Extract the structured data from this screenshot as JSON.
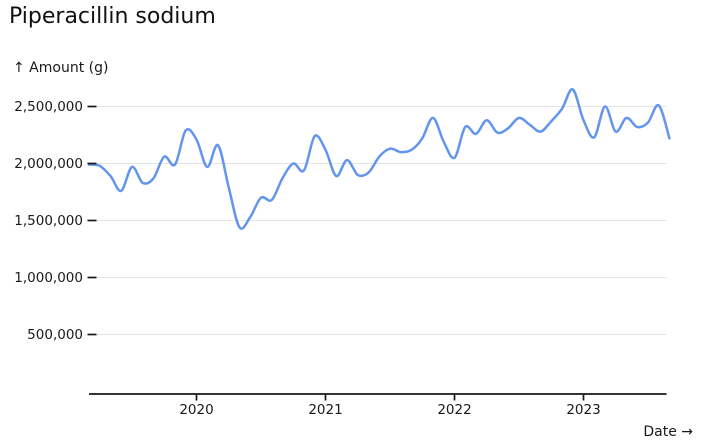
{
  "page": {
    "background": "#ffffff"
  },
  "title": "Piperacillin sodium",
  "chart_data": {
    "type": "line",
    "title": "Piperacillin sodium",
    "ylabel": "↑ Amount (g)",
    "xlabel": "Date →",
    "legend": "none",
    "grid": "horizontal",
    "line_color": "#6495ed",
    "grid_color": "#e4e4e4",
    "axis_color": "#161616",
    "text_color": "#1a1a1a",
    "ylim": [
      0,
      2500000
    ],
    "xlim_years": [
      2019.1667,
      2023.6667
    ],
    "y_ticks": [
      500000,
      1000000,
      1500000,
      2000000,
      2500000
    ],
    "y_tick_labels": [
      "500,000",
      "1,000,000",
      "1,500,000",
      "2,000,000",
      "2,500,000"
    ],
    "x_ticks": [
      2020,
      2021,
      2022,
      2023
    ],
    "series": [
      {
        "name": "Piperacillin sodium",
        "x": [
          "2019-03",
          "2019-04",
          "2019-05",
          "2019-06",
          "2019-07",
          "2019-08",
          "2019-09",
          "2019-10",
          "2019-11",
          "2019-12",
          "2020-01",
          "2020-02",
          "2020-03",
          "2020-04",
          "2020-05",
          "2020-06",
          "2020-07",
          "2020-08",
          "2020-09",
          "2020-10",
          "2020-11",
          "2020-12",
          "2021-01",
          "2021-02",
          "2021-03",
          "2021-04",
          "2021-05",
          "2021-06",
          "2021-07",
          "2021-08",
          "2021-09",
          "2021-10",
          "2021-11",
          "2021-12",
          "2022-01",
          "2022-02",
          "2022-03",
          "2022-04",
          "2022-05",
          "2022-06",
          "2022-07",
          "2022-08",
          "2022-09",
          "2022-10",
          "2022-11",
          "2022-12",
          "2023-01",
          "2023-02",
          "2023-03",
          "2023-04",
          "2023-05",
          "2023-06",
          "2023-07",
          "2023-08",
          "2023-09"
        ],
        "values": [
          1990000,
          1980000,
          1890000,
          1760000,
          1970000,
          1830000,
          1870000,
          2060000,
          1990000,
          2290000,
          2210000,
          1970000,
          2160000,
          1790000,
          1440000,
          1530000,
          1700000,
          1680000,
          1870000,
          2000000,
          1940000,
          2240000,
          2120000,
          1890000,
          2030000,
          1900000,
          1920000,
          2060000,
          2130000,
          2100000,
          2120000,
          2220000,
          2400000,
          2190000,
          2050000,
          2320000,
          2260000,
          2380000,
          2270000,
          2310000,
          2400000,
          2340000,
          2280000,
          2370000,
          2480000,
          2650000,
          2380000,
          2230000,
          2500000,
          2280000,
          2400000,
          2320000,
          2360000,
          2510000,
          2220000
        ]
      }
    ]
  }
}
